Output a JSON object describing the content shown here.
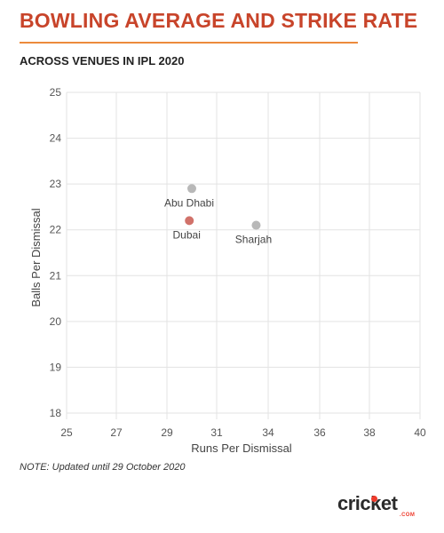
{
  "header": {
    "title": "BOWLING AVERAGE AND STRIKE RATE",
    "subtitle": "ACROSS VENUES IN IPL 2020"
  },
  "chart_data": {
    "type": "scatter",
    "xlabel": "Runs Per Dismissal",
    "ylabel": "Balls Per Dismissal",
    "xlim": [
      25,
      40
    ],
    "ylim": [
      18,
      25
    ],
    "xticks": [
      25,
      27,
      29,
      31,
      34,
      36,
      38,
      40
    ],
    "yticks": [
      18,
      19,
      20,
      21,
      22,
      23,
      24,
      25
    ],
    "grid": true,
    "points": [
      {
        "label": "Abu Dhabi",
        "x": 30.0,
        "y": 22.9,
        "color": "#b8b8b8"
      },
      {
        "label": "Dubai",
        "x": 29.9,
        "y": 22.2,
        "color": "#d1726a"
      },
      {
        "label": "Sharjah",
        "x": 33.3,
        "y": 22.1,
        "color": "#b8b8b8"
      }
    ]
  },
  "footer": {
    "note": "NOTE: Updated until 29 October 2020",
    "logo_text": "cricket",
    "logo_sub": ".COM"
  }
}
